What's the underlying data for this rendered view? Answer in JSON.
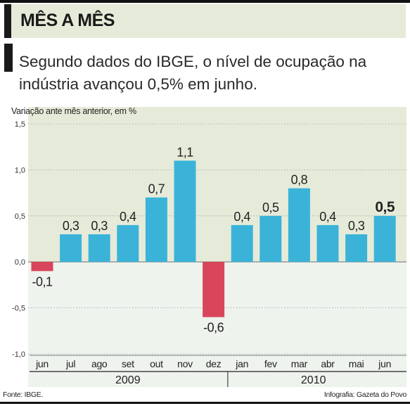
{
  "header": {
    "title": "MÊS A MÊS",
    "lead": "Segundo dados do IBGE, o nível de ocupação na indústria avançou 0,5% em junho."
  },
  "footer": {
    "source": "Fonte: IBGE.",
    "credit": "Infografia: Gazeta do Povo"
  },
  "colors": {
    "positive": "#3bb3d9",
    "negative": "#d9455a",
    "band": "#e6ebd9",
    "negative_area": "#eef3ee"
  },
  "chart_data": {
    "type": "bar",
    "ylabel": "Variação ante mês anterior, em %",
    "ylim": [
      -1.0,
      1.5
    ],
    "yticks": [
      1.5,
      1.0,
      0.5,
      0.0,
      -0.5,
      -1.0
    ],
    "ytick_labels": [
      "1,5",
      "1,0",
      "0,5",
      "0,0",
      "-0,5",
      "-1,0"
    ],
    "categories": [
      "jun",
      "jul",
      "ago",
      "set",
      "out",
      "nov",
      "dez",
      "jan",
      "fev",
      "mar",
      "abr",
      "mai",
      "jun"
    ],
    "values": [
      -0.1,
      0.3,
      0.3,
      0.4,
      0.7,
      1.1,
      -0.6,
      0.4,
      0.5,
      0.8,
      0.4,
      0.3,
      0.5
    ],
    "value_labels": [
      "-0,1",
      "0,3",
      "0,3",
      "0,4",
      "0,7",
      "1,1",
      "-0,6",
      "0,4",
      "0,5",
      "0,8",
      "0,4",
      "0,3",
      "0,5"
    ],
    "highlight_index": 12,
    "year_groups": [
      {
        "label": "2009",
        "start": 0,
        "end": 6
      },
      {
        "label": "2010",
        "start": 7,
        "end": 12
      }
    ]
  }
}
